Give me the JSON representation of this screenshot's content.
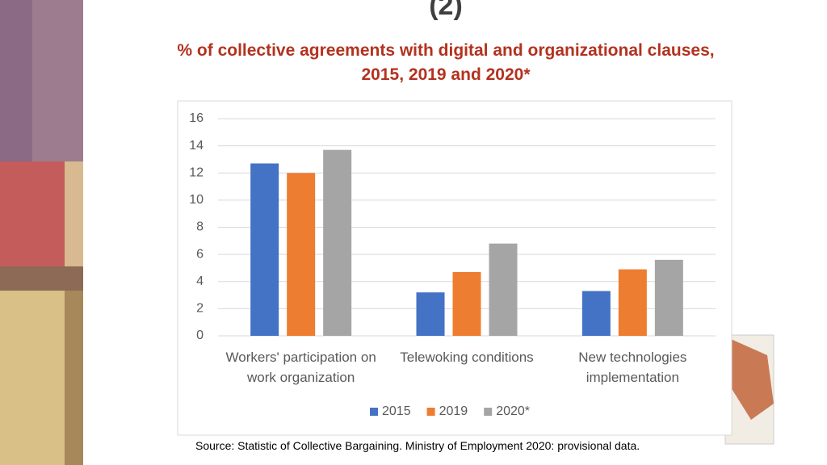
{
  "heading": "(2)",
  "chart_data": {
    "type": "bar",
    "title": "% of collective agreements with digital and organizational clauses, 2015, 2019 and 2020*",
    "categories": [
      "Workers' participation on work organization",
      "Telewoking conditions",
      "New technologies implementation"
    ],
    "series": [
      {
        "name": "2015",
        "color": "#4472c4",
        "values": [
          12.7,
          3.2,
          3.3
        ]
      },
      {
        "name": "2019",
        "color": "#ed7d31",
        "values": [
          12.0,
          4.7,
          4.9
        ]
      },
      {
        "name": "2020*",
        "color": "#a5a5a5",
        "values": [
          13.7,
          6.8,
          5.6
        ]
      }
    ],
    "ylim": [
      0,
      16
    ],
    "yticks": [
      0,
      2,
      4,
      6,
      8,
      10,
      12,
      14,
      16
    ],
    "grid": true,
    "legend": "bottom",
    "source": "Source: Statistic of Collective Bargaining. Ministry of Employment 2020: provisional data."
  }
}
